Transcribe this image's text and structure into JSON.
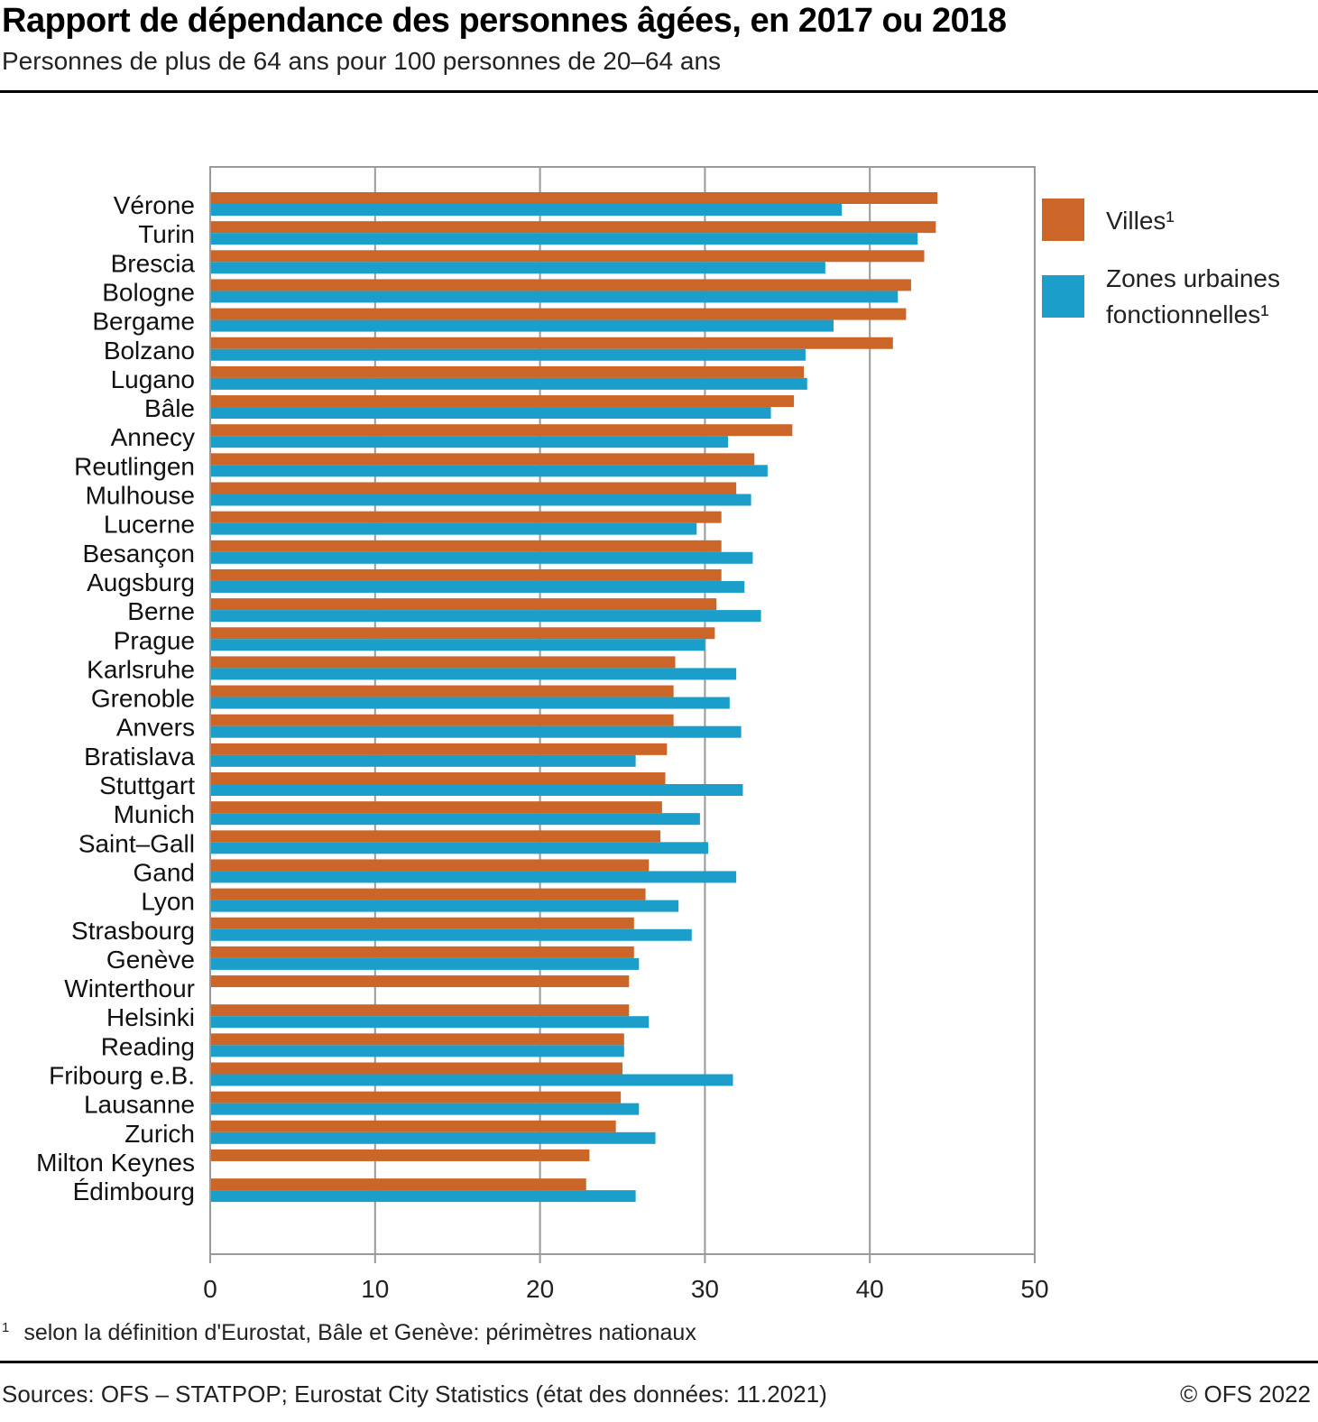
{
  "header": {
    "title": "Rapport de dépendance des personnes âgées, en 2017 ou 2018",
    "subtitle": "Personnes de plus de 64 ans pour 100 personnes de 20–64 ans"
  },
  "footer": {
    "footnote_mark": "1",
    "footnote": "selon la définition d'Eurostat, Bâle et Genève: périmètres nationaux",
    "source": "Sources: OFS – STATPOP; Eurostat City Statistics (état des données: 11.2021)",
    "copyright": "© OFS 2022"
  },
  "colors": {
    "villes": "#cc6628",
    "zones": "#1b9ec9",
    "grid": "#9a9a9a"
  },
  "chart_data": {
    "type": "bar",
    "orientation": "horizontal",
    "title": "Rapport de dépendance des personnes âgées, en 2017 ou 2018",
    "subtitle": "Personnes de plus de 64 ans pour 100 personnes de 20–64 ans",
    "xlabel": "",
    "ylabel": "",
    "xlim": [
      0,
      50
    ],
    "xticks": [
      0,
      10,
      20,
      30,
      40,
      50
    ],
    "grid": true,
    "legend_position": "right",
    "categories": [
      "Vérone",
      "Turin",
      "Brescia",
      "Bologne",
      "Bergame",
      "Bolzano",
      "Lugano",
      "Bâle",
      "Annecy",
      "Reutlingen",
      "Mulhouse",
      "Lucerne",
      "Besançon",
      "Augsburg",
      "Berne",
      "Prague",
      "Karlsruhe",
      "Grenoble",
      "Anvers",
      "Bratislava",
      "Stuttgart",
      "Munich",
      "Saint–Gall",
      "Gand",
      "Lyon",
      "Strasbourg",
      "Genève",
      "Winterthour",
      "Helsinki",
      "Reading",
      "Fribourg e.B.",
      "Lausanne",
      "Zurich",
      "Milton Keynes",
      "Édimbourg"
    ],
    "series": [
      {
        "name": "Villes¹",
        "legend_line1": "Villes¹",
        "legend_line2": "",
        "color": "#cc6628",
        "values": [
          44.1,
          44.0,
          43.3,
          42.5,
          42.2,
          41.4,
          36.0,
          35.4,
          35.3,
          33.0,
          31.9,
          31.0,
          31.0,
          31.0,
          30.7,
          30.6,
          28.2,
          28.1,
          28.1,
          27.7,
          27.6,
          27.4,
          27.3,
          26.6,
          26.4,
          25.7,
          25.7,
          25.4,
          25.4,
          25.1,
          25.0,
          24.9,
          24.6,
          23.0,
          22.8
        ]
      },
      {
        "name": "Zones urbaines fonctionnelles¹",
        "legend_line1": "Zones urbaines",
        "legend_line2": "fonctionnelles¹",
        "color": "#1b9ec9",
        "values": [
          38.3,
          42.9,
          37.3,
          41.7,
          37.8,
          36.1,
          36.2,
          34.0,
          31.4,
          33.8,
          32.8,
          29.5,
          32.9,
          32.4,
          33.4,
          30.0,
          31.9,
          31.5,
          32.2,
          25.8,
          32.3,
          29.7,
          30.2,
          31.9,
          28.4,
          29.2,
          26.0,
          null,
          26.6,
          25.1,
          31.7,
          26.0,
          27.0,
          null,
          25.8
        ]
      }
    ]
  }
}
